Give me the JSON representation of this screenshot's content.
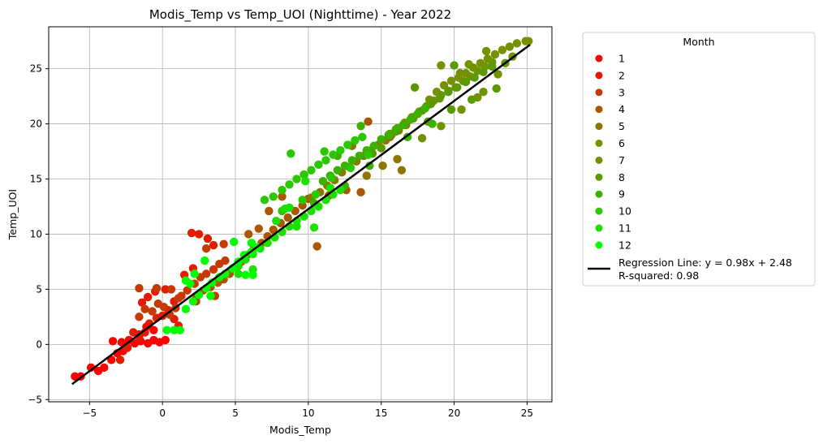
{
  "chart_data": {
    "type": "scatter",
    "title": "Modis_Temp vs Temp_UOI (Nighttime) - Year 2022",
    "xlabel": "Modis_Temp",
    "ylabel": "Temp_UOI",
    "xlim": [
      -7.8,
      26.7
    ],
    "ylim": [
      -5.2,
      28.8
    ],
    "xticks": [
      -5,
      0,
      5,
      10,
      15,
      20,
      25
    ],
    "yticks": [
      -5,
      0,
      5,
      10,
      15,
      20,
      25
    ],
    "grid": true,
    "legend": {
      "title": "Month",
      "placement": "outside-right",
      "entries": [
        "1",
        "2",
        "3",
        "4",
        "5",
        "6",
        "7",
        "8",
        "9",
        "10",
        "11",
        "12"
      ],
      "regression_label_line1": "Regression Line: y = 0.98x + 2.48",
      "regression_label_line2": "R-squared: 0.98"
    },
    "series": [
      {
        "name": "1",
        "color": "#ff0000",
        "points": [
          [
            -6.0,
            -2.9
          ],
          [
            -5.6,
            -2.9
          ],
          [
            -4.9,
            -2.1
          ],
          [
            -4.4,
            -2.4
          ],
          [
            -4.0,
            -2.1
          ],
          [
            -3.5,
            -1.4
          ],
          [
            -3.1,
            -0.8
          ],
          [
            -2.7,
            -0.6
          ],
          [
            -3.4,
            0.3
          ],
          [
            -2.8,
            0.2
          ],
          [
            -2.3,
            0.4
          ],
          [
            -1.9,
            0.1
          ],
          [
            -1.5,
            0.3
          ],
          [
            -1.0,
            0.1
          ],
          [
            -0.6,
            0.4
          ],
          [
            -0.2,
            0.2
          ],
          [
            0.2,
            0.4
          ],
          [
            -1.6,
            0.9
          ],
          [
            -1.1,
            1.6
          ],
          [
            -0.6,
            1.3
          ]
        ]
      },
      {
        "name": "2",
        "color": "#e21c00",
        "points": [
          [
            -2.9,
            -1.4
          ],
          [
            -2.4,
            -0.3
          ],
          [
            -2.0,
            1.1
          ],
          [
            -1.6,
            0.7
          ],
          [
            -1.2,
            1.1
          ],
          [
            -0.9,
            1.9
          ],
          [
            -0.4,
            2.4
          ],
          [
            0.0,
            2.6
          ],
          [
            0.4,
            3.1
          ],
          [
            -1.4,
            3.8
          ],
          [
            -1.0,
            4.3
          ],
          [
            -0.5,
            4.8
          ],
          [
            0.2,
            5.0
          ],
          [
            0.8,
            3.9
          ],
          [
            2.0,
            10.1
          ],
          [
            2.5,
            10.0
          ],
          [
            3.1,
            9.6
          ],
          [
            3.5,
            9.0
          ],
          [
            1.5,
            6.3
          ],
          [
            2.1,
            6.9
          ],
          [
            0.8,
            2.3
          ],
          [
            1.1,
            1.7
          ]
        ]
      },
      {
        "name": "3",
        "color": "#c53a00",
        "points": [
          [
            -1.6,
            2.5
          ],
          [
            -1.2,
            3.2
          ],
          [
            -0.7,
            3.0
          ],
          [
            -0.3,
            3.7
          ],
          [
            0.1,
            3.4
          ],
          [
            0.5,
            2.7
          ],
          [
            0.9,
            3.3
          ],
          [
            1.3,
            4.4
          ],
          [
            1.7,
            4.9
          ],
          [
            2.2,
            5.5
          ],
          [
            2.6,
            6.1
          ],
          [
            3.0,
            6.4
          ],
          [
            3.5,
            6.8
          ],
          [
            3.9,
            7.3
          ],
          [
            4.3,
            7.6
          ],
          [
            -1.6,
            5.1
          ],
          [
            -0.4,
            5.1
          ],
          [
            0.6,
            5.0
          ],
          [
            1.1,
            4.2
          ],
          [
            2.3,
            3.9
          ],
          [
            3.6,
            4.4
          ],
          [
            4.6,
            6.6
          ],
          [
            4.2,
            9.1
          ],
          [
            3.0,
            8.7
          ]
        ]
      },
      {
        "name": "4",
        "color": "#a95700",
        "points": [
          [
            2.3,
            4.2
          ],
          [
            2.8,
            4.9
          ],
          [
            3.3,
            5.2
          ],
          [
            3.8,
            5.6
          ],
          [
            4.2,
            5.9
          ],
          [
            4.6,
            6.4
          ],
          [
            5.0,
            7.0
          ],
          [
            5.4,
            7.5
          ],
          [
            5.8,
            8.1
          ],
          [
            6.3,
            8.8
          ],
          [
            6.8,
            9.2
          ],
          [
            7.2,
            9.8
          ],
          [
            7.6,
            10.4
          ],
          [
            8.1,
            11.0
          ],
          [
            8.6,
            11.5
          ],
          [
            9.1,
            12.1
          ],
          [
            9.6,
            12.6
          ],
          [
            10.0,
            13.2
          ],
          [
            5.9,
            10.0
          ],
          [
            6.6,
            10.5
          ],
          [
            7.3,
            12.1
          ],
          [
            8.2,
            13.4
          ],
          [
            10.6,
            8.9
          ],
          [
            11.4,
            13.5
          ],
          [
            12.6,
            14.0
          ],
          [
            13.6,
            13.8
          ],
          [
            14.1,
            20.2
          ]
        ]
      },
      {
        "name": "5",
        "color": "#8c7500",
        "points": [
          [
            10.2,
            13.3
          ],
          [
            10.8,
            13.8
          ],
          [
            11.3,
            14.4
          ],
          [
            11.8,
            14.9
          ],
          [
            12.3,
            15.6
          ],
          [
            12.8,
            16.1
          ],
          [
            13.3,
            16.6
          ],
          [
            13.8,
            17.1
          ],
          [
            14.3,
            17.6
          ],
          [
            14.8,
            18.1
          ],
          [
            15.3,
            18.5
          ],
          [
            15.7,
            19.0
          ],
          [
            16.2,
            19.4
          ],
          [
            16.7,
            19.9
          ],
          [
            17.2,
            20.5
          ],
          [
            16.1,
            16.8
          ],
          [
            15.1,
            16.2
          ],
          [
            14.0,
            15.3
          ],
          [
            13.0,
            18.0
          ],
          [
            15.6,
            18.8
          ],
          [
            16.4,
            15.8
          ]
        ]
      },
      {
        "name": "6",
        "color": "#709300",
        "points": [
          [
            15.6,
            19.1
          ],
          [
            16.1,
            19.6
          ],
          [
            16.6,
            20.1
          ],
          [
            17.1,
            20.6
          ],
          [
            17.6,
            21.1
          ],
          [
            18.1,
            21.6
          ],
          [
            18.6,
            22.1
          ],
          [
            19.1,
            22.6
          ],
          [
            19.6,
            23.0
          ],
          [
            20.1,
            23.3
          ],
          [
            20.6,
            23.9
          ],
          [
            21.1,
            24.3
          ],
          [
            21.6,
            24.8
          ],
          [
            22.1,
            25.2
          ],
          [
            22.6,
            25.6
          ],
          [
            17.8,
            18.7
          ],
          [
            19.1,
            19.8
          ],
          [
            20.5,
            21.3
          ],
          [
            22.0,
            22.9
          ],
          [
            21.0,
            25.4
          ],
          [
            22.2,
            26.6
          ]
        ]
      },
      {
        "name": "7",
        "color": "#739100",
        "points": [
          [
            18.3,
            22.2
          ],
          [
            18.8,
            22.9
          ],
          [
            19.3,
            23.5
          ],
          [
            19.8,
            23.9
          ],
          [
            20.3,
            24.2
          ],
          [
            20.8,
            24.6
          ],
          [
            21.3,
            25.1
          ],
          [
            21.8,
            25.5
          ],
          [
            22.3,
            25.9
          ],
          [
            22.8,
            26.3
          ],
          [
            23.3,
            26.7
          ],
          [
            23.8,
            27.0
          ],
          [
            24.3,
            27.3
          ],
          [
            24.9,
            27.5
          ],
          [
            25.1,
            27.5
          ],
          [
            19.1,
            25.3
          ],
          [
            20.4,
            24.6
          ],
          [
            23.0,
            24.5
          ],
          [
            21.6,
            22.4
          ],
          [
            24.0,
            26.1
          ]
        ]
      },
      {
        "name": "8",
        "color": "#5b9900",
        "points": [
          [
            16.0,
            19.3
          ],
          [
            16.6,
            19.9
          ],
          [
            17.2,
            20.6
          ],
          [
            17.8,
            21.2
          ],
          [
            18.4,
            21.8
          ],
          [
            19.0,
            22.3
          ],
          [
            19.6,
            22.9
          ],
          [
            20.2,
            23.3
          ],
          [
            20.8,
            23.8
          ],
          [
            21.4,
            24.2
          ],
          [
            22.0,
            24.7
          ],
          [
            22.6,
            25.2
          ],
          [
            17.3,
            23.3
          ],
          [
            18.2,
            20.2
          ],
          [
            19.8,
            21.3
          ],
          [
            21.2,
            22.2
          ],
          [
            22.9,
            23.2
          ],
          [
            20.0,
            25.3
          ],
          [
            23.5,
            25.5
          ],
          [
            15.0,
            17.8
          ],
          [
            14.4,
            17.3
          ]
        ]
      },
      {
        "name": "9",
        "color": "#3ab000",
        "points": [
          [
            11.0,
            14.8
          ],
          [
            11.5,
            15.3
          ],
          [
            12.0,
            15.8
          ],
          [
            12.5,
            16.2
          ],
          [
            13.0,
            16.7
          ],
          [
            13.5,
            17.1
          ],
          [
            14.0,
            17.6
          ],
          [
            14.5,
            18.0
          ],
          [
            15.0,
            18.6
          ],
          [
            15.5,
            19.0
          ],
          [
            16.0,
            19.5
          ],
          [
            16.5,
            19.9
          ],
          [
            17.0,
            20.4
          ],
          [
            17.5,
            20.9
          ],
          [
            18.0,
            21.4
          ],
          [
            12.0,
            17.1
          ],
          [
            14.2,
            16.2
          ],
          [
            16.8,
            18.8
          ],
          [
            18.5,
            20.0
          ],
          [
            10.4,
            12.8
          ],
          [
            12.5,
            14.4
          ],
          [
            13.6,
            19.8
          ]
        ]
      },
      {
        "name": "10",
        "color": "#2ac800",
        "points": [
          [
            7.6,
            13.4
          ],
          [
            8.2,
            14.0
          ],
          [
            8.7,
            14.5
          ],
          [
            9.2,
            15.0
          ],
          [
            9.7,
            15.4
          ],
          [
            10.2,
            15.8
          ],
          [
            10.7,
            16.3
          ],
          [
            11.2,
            16.7
          ],
          [
            11.7,
            17.2
          ],
          [
            12.2,
            17.6
          ],
          [
            12.7,
            18.1
          ],
          [
            13.2,
            18.5
          ],
          [
            13.7,
            18.8
          ],
          [
            8.8,
            17.3
          ],
          [
            9.6,
            13.1
          ],
          [
            10.5,
            13.6
          ],
          [
            11.6,
            15.1
          ],
          [
            12.9,
            16.0
          ],
          [
            14.1,
            17.2
          ],
          [
            8.2,
            12.1
          ],
          [
            11.1,
            17.5
          ],
          [
            7.0,
            13.1
          ]
        ]
      },
      {
        "name": "11",
        "color": "#1ce000",
        "points": [
          [
            5.2,
            7.1
          ],
          [
            5.7,
            7.7
          ],
          [
            6.2,
            8.2
          ],
          [
            6.7,
            8.7
          ],
          [
            7.2,
            9.2
          ],
          [
            7.7,
            9.7
          ],
          [
            8.2,
            10.2
          ],
          [
            8.7,
            10.7
          ],
          [
            9.2,
            11.2
          ],
          [
            9.7,
            11.6
          ],
          [
            10.2,
            12.1
          ],
          [
            10.7,
            12.5
          ],
          [
            11.2,
            13.1
          ],
          [
            11.7,
            13.6
          ],
          [
            12.2,
            14.0
          ],
          [
            5.2,
            6.4
          ],
          [
            6.2,
            6.8
          ],
          [
            7.8,
            11.2
          ],
          [
            9.2,
            10.7
          ],
          [
            10.4,
            10.6
          ],
          [
            8.7,
            12.4
          ],
          [
            9.8,
            14.8
          ],
          [
            8.4,
            12.3
          ],
          [
            11.5,
            14.2
          ]
        ]
      },
      {
        "name": "12",
        "color": "#00ff00",
        "points": [
          [
            0.3,
            1.3
          ],
          [
            0.8,
            1.3
          ],
          [
            1.2,
            1.3
          ],
          [
            1.6,
            3.2
          ],
          [
            2.1,
            3.9
          ],
          [
            2.5,
            4.5
          ],
          [
            3.0,
            5.1
          ],
          [
            3.4,
            5.6
          ],
          [
            3.9,
            6.1
          ],
          [
            4.3,
            6.4
          ],
          [
            4.8,
            6.9
          ],
          [
            5.2,
            7.5
          ],
          [
            5.6,
            8.1
          ],
          [
            6.1,
            8.4
          ],
          [
            6.5,
            8.8
          ],
          [
            1.6,
            5.8
          ],
          [
            2.2,
            6.4
          ],
          [
            2.9,
            7.6
          ],
          [
            5.7,
            6.3
          ],
          [
            6.2,
            6.3
          ],
          [
            3.3,
            4.4
          ],
          [
            1.9,
            5.5
          ],
          [
            4.9,
            9.3
          ],
          [
            6.1,
            9.2
          ]
        ]
      }
    ],
    "regression": {
      "slope": 0.98,
      "intercept": 2.48,
      "x_range": [
        -6.2,
        25.2
      ],
      "color": "#000000"
    }
  }
}
